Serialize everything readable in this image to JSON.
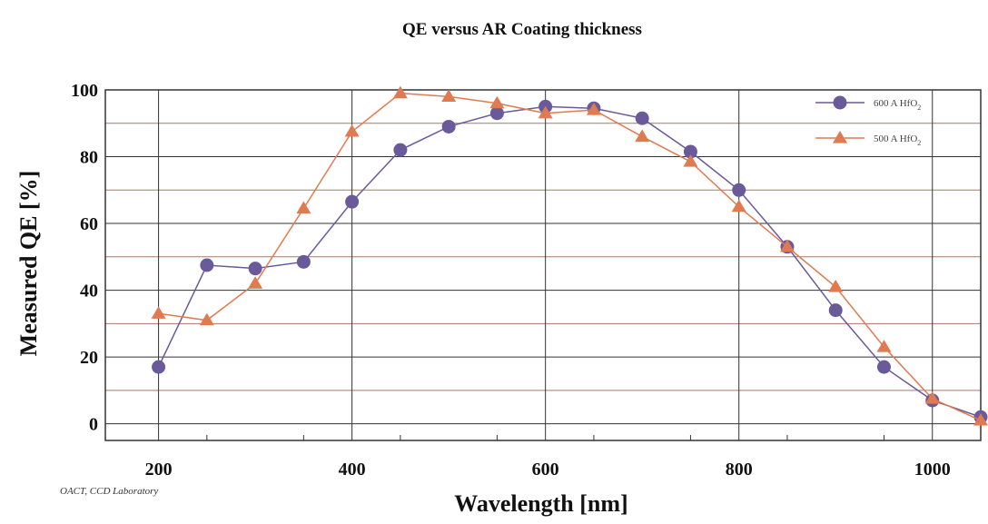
{
  "chart_data": {
    "type": "line",
    "title": "QE versus AR Coating thickness",
    "xlabel": "Wavelength [nm]",
    "ylabel": "Measured QE [%]",
    "xlim": [
      145,
      1050
    ],
    "ylim": [
      -5,
      100
    ],
    "xticks": [
      200,
      400,
      600,
      800,
      1000
    ],
    "yticks": [
      0,
      20,
      40,
      60,
      80,
      100
    ],
    "ygrid_minor": [
      10,
      30,
      50,
      70,
      90
    ],
    "grid": true,
    "legend_position": "top-right",
    "credit": "OACT, CCD Laboratory",
    "series": [
      {
        "name": "600 A HfO",
        "name_subscript": "2",
        "color": "#6a5a99",
        "marker": "circle",
        "x": [
          200,
          250,
          300,
          350,
          400,
          450,
          500,
          550,
          600,
          650,
          700,
          750,
          800,
          850,
          900,
          950,
          1000,
          1050
        ],
        "y": [
          17,
          47.5,
          46.5,
          48.5,
          66.5,
          82,
          89,
          93,
          95,
          94.5,
          91.5,
          81.5,
          70,
          53,
          34,
          17,
          7,
          2
        ]
      },
      {
        "name": "500 A HfO",
        "name_subscript": "2",
        "color": "#e07a50",
        "marker": "triangle",
        "x": [
          200,
          250,
          300,
          350,
          400,
          450,
          500,
          550,
          600,
          650,
          700,
          750,
          800,
          850,
          900,
          950,
          1000,
          1050
        ],
        "y": [
          33,
          31,
          42,
          64.5,
          87.5,
          99,
          98,
          96,
          93,
          94,
          86,
          78.5,
          65,
          53,
          41,
          23,
          7.5,
          1
        ]
      }
    ]
  }
}
